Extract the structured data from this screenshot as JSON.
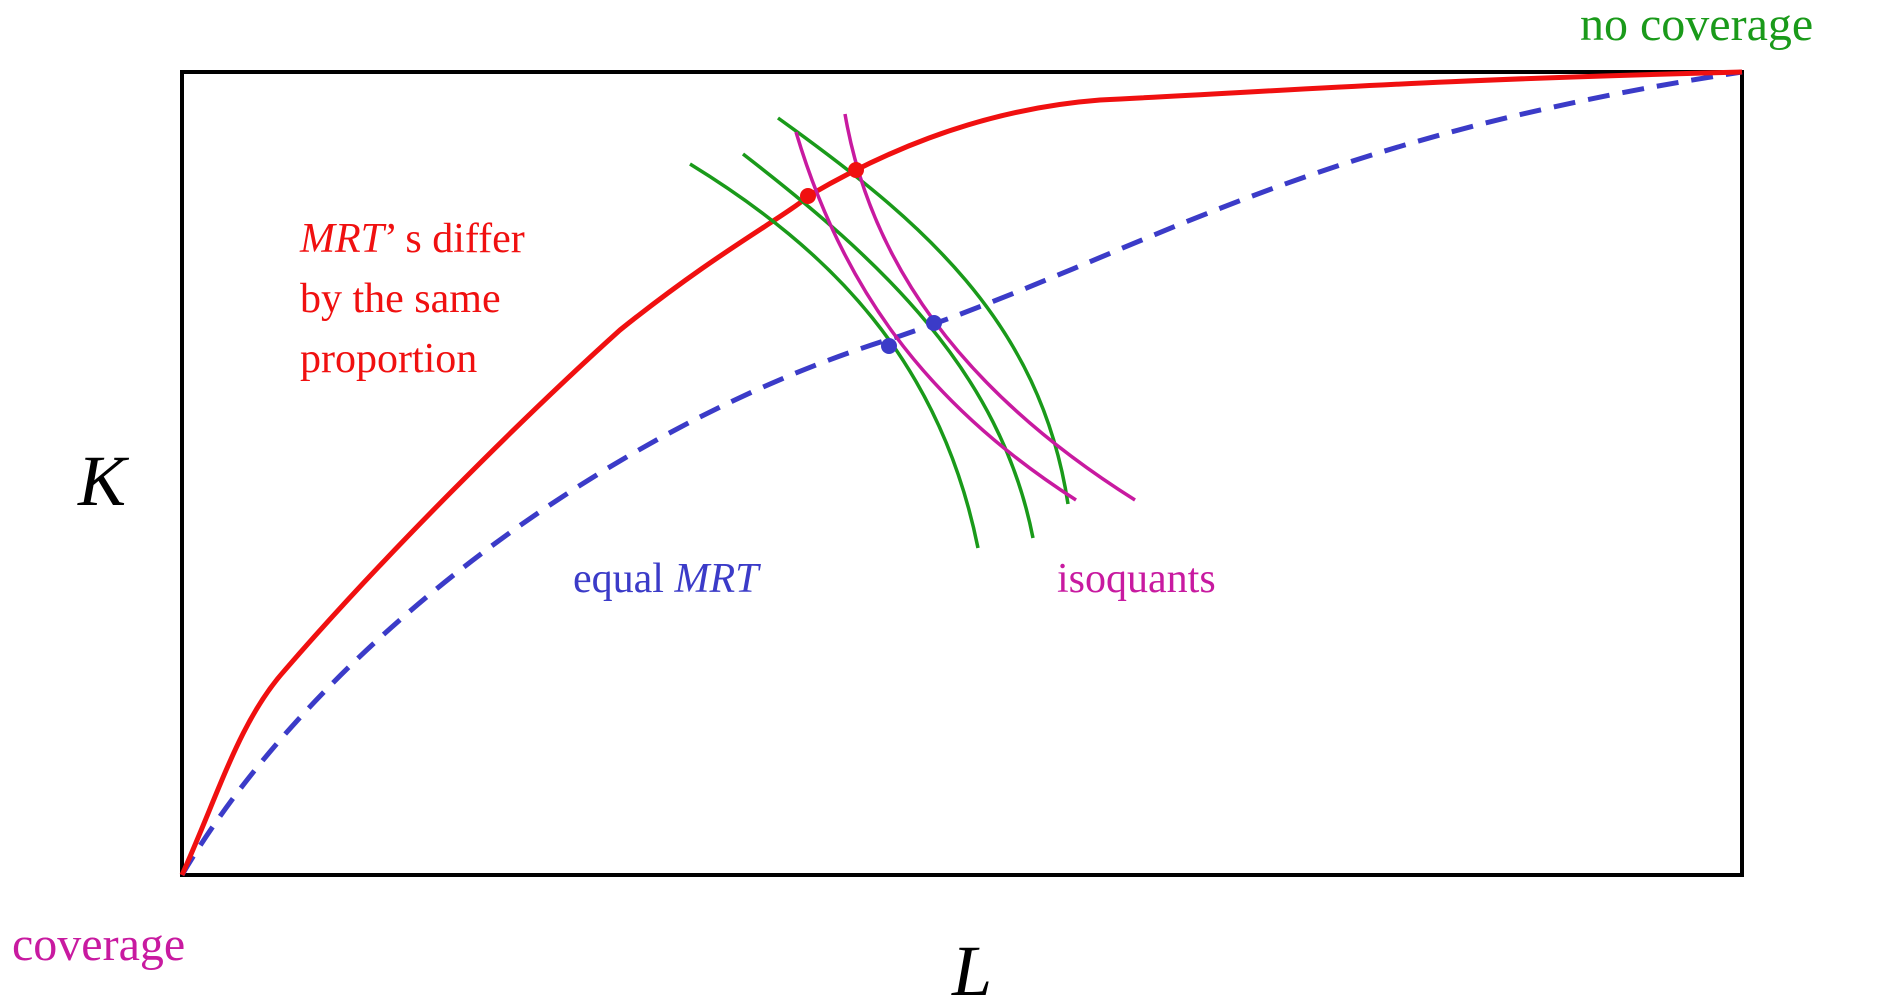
{
  "labels": {
    "no_coverage": "no coverage",
    "coverage": "coverage",
    "y_axis": "K",
    "x_axis": "L",
    "red_note": {
      "line1_italic": "MRT",
      "line1_rest": "’ s differ",
      "line2": "by the same",
      "line3": "proportion"
    },
    "blue_note": {
      "plain": "equal ",
      "italic": "MRT"
    },
    "isoquants": "isoquants"
  },
  "colors": {
    "frame": "#000000",
    "red_curve": "#f01010",
    "blue_curve": "#3b3bc8",
    "green_curve": "#1a9a1a",
    "magenta_curve": "#c81aa0",
    "no_coverage_text": "#1a9a1a",
    "coverage_text": "#c81aa0"
  }
}
